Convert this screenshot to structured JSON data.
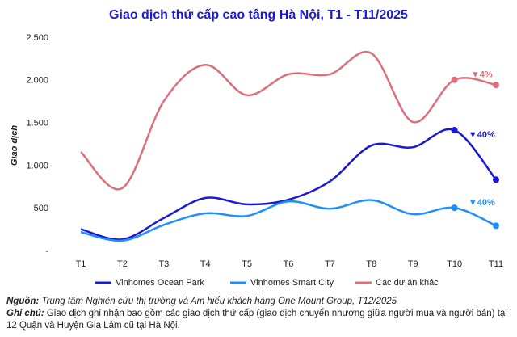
{
  "chart_data": {
    "type": "line",
    "title": "Giao dịch thứ cấp cao tầng Hà Nội, T1 - T11/2025",
    "y_label": "Giao dịch",
    "categories": [
      "T1",
      "T2",
      "T3",
      "T4",
      "T5",
      "T6",
      "T7",
      "T8",
      "T9",
      "T10",
      "T11"
    ],
    "series": [
      {
        "name": "Vinhomes Ocean Park",
        "color": "#1a1ad6",
        "values": [
          260,
          140,
          390,
          625,
          550,
          605,
          820,
          1240,
          1220,
          1420,
          840
        ],
        "annotation": "▼40%"
      },
      {
        "name": "Vinhomes Smart City",
        "color": "#1e8fff",
        "values": [
          225,
          125,
          310,
          445,
          415,
          585,
          500,
          600,
          435,
          510,
          300
        ],
        "annotation": "▼40%"
      },
      {
        "name": "Các dự án khác",
        "color": "#dd6f7c",
        "values": [
          1165,
          740,
          1760,
          2185,
          1830,
          2075,
          2075,
          2320,
          1515,
          2010,
          1950
        ],
        "annotation": "▼4%"
      }
    ],
    "ylim": [
      0,
      2500
    ],
    "yticks": [
      {
        "value": 0,
        "label": "-"
      },
      500,
      {
        "value": 1000,
        "label": "1.000"
      },
      {
        "value": 1500,
        "label": "1.500"
      },
      {
        "value": 2000,
        "label": "2.000"
      },
      {
        "value": 2500,
        "label": "2.500"
      }
    ],
    "grid": false,
    "legend": "bottom",
    "source_label": "Nguồn:",
    "source": "Trung tâm Nghiên cứu thị trường và Am hiểu khách hàng One Mount Group, T12/2025",
    "note_label": "Ghi chú:",
    "note": "Giao dịch ghi nhận bao gồm các giao dịch thứ cấp (giao dịch chuyển nhượng giữa người mua và người bán) tại 12 Quận và Huyện Gia Lâm cũ tại Hà Nội."
  }
}
